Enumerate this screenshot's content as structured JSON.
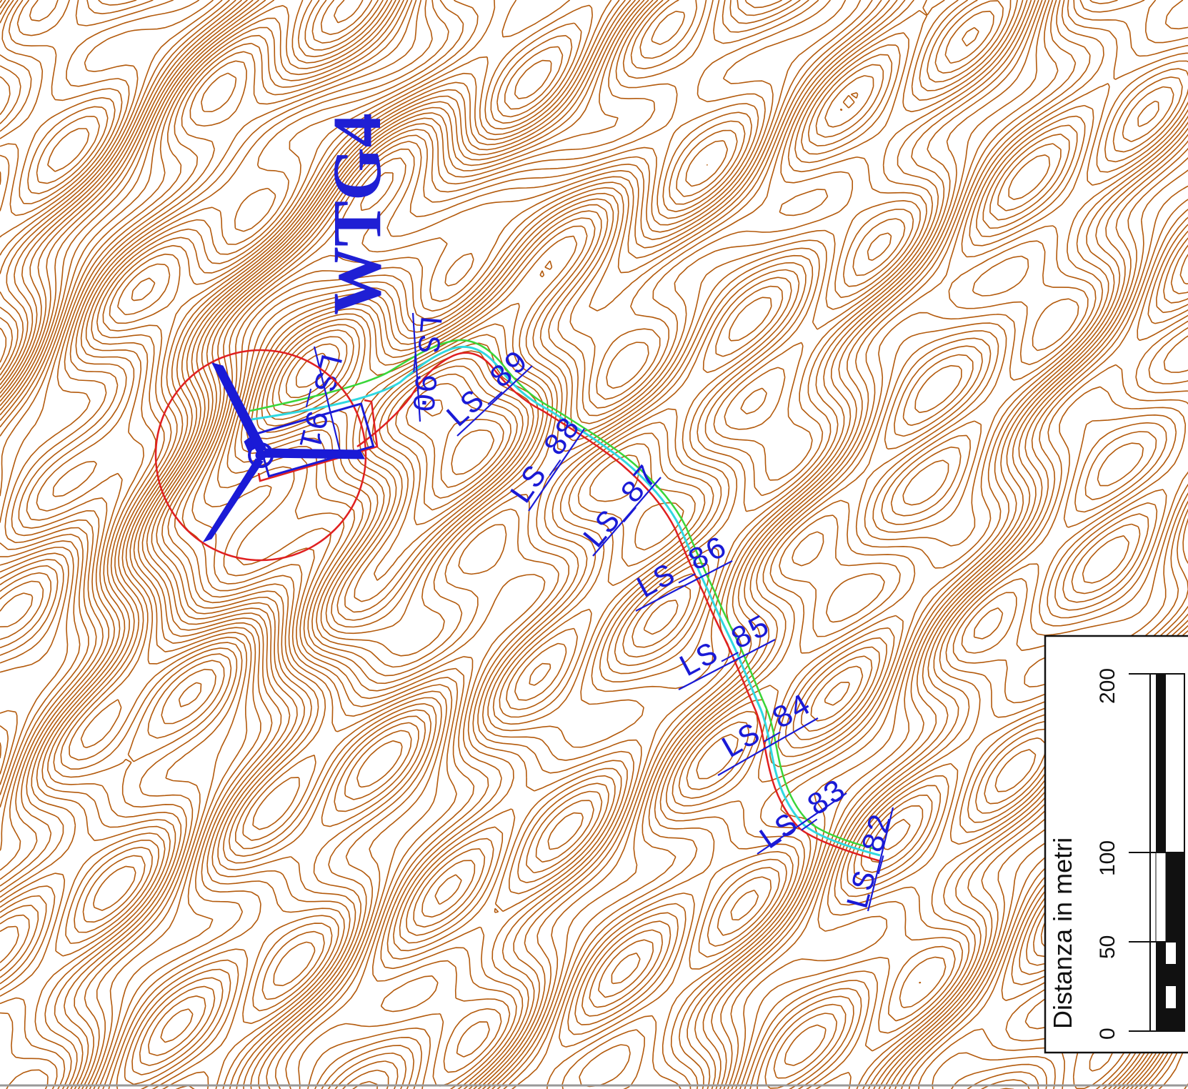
{
  "title": "WTG4",
  "scale_bar": {
    "label": "Distanza in metri",
    "unit": "metri",
    "ticks": [
      "0",
      "50",
      "100",
      "200"
    ],
    "tick_values": [
      0,
      50,
      100,
      200
    ]
  },
  "section_labels": [
    "LS_82",
    "LS_83",
    "LS_84",
    "LS_85",
    "LS_86",
    "LS_87",
    "LS_88",
    "LS_89",
    "LS_90",
    "LS_91"
  ],
  "colors": {
    "contour": "#b35a0c",
    "road_edge_left": "#e02020",
    "road_edge_right": "#39d639",
    "road_axis": "#30d8e0",
    "sections": "#1a1ad6",
    "turbine": "#1a1ad6",
    "rotor_area": "#e02020"
  },
  "icons": [
    "wind-turbine-icon",
    "rotor-swept-area-circle",
    "crane-pad-rectangle"
  ]
}
